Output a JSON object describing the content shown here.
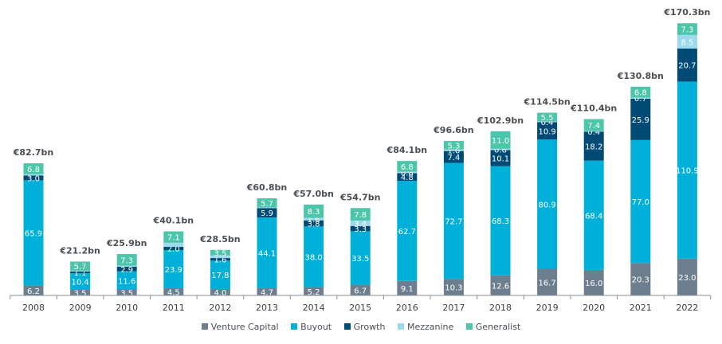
{
  "chart_data": {
    "type": "bar",
    "stacked": true,
    "title": "",
    "xlabel": "",
    "ylabel": "",
    "ylim": [
      0,
      175
    ],
    "grid": false,
    "legend_position": "bottom",
    "categories": [
      "2008",
      "2009",
      "2010",
      "2011",
      "2012",
      "2013",
      "2014",
      "2015",
      "2016",
      "2017",
      "2018",
      "2019",
      "2020",
      "2021",
      "2022"
    ],
    "totals": [
      "€82.7bn",
      "€21.2bn",
      "€25.9bn",
      "€40.1bn",
      "€28.5bn",
      "€60.8bn",
      "€57.0bn",
      "€54.7bn",
      "€84.1bn",
      "€96.6bn",
      "€102.9bn",
      "€114.5bn",
      "€110.4bn",
      "€130.8bn",
      "€170.3bn"
    ],
    "series": [
      {
        "name": "Venture Capital",
        "color": "#6d7f8e",
        "values": [
          6.2,
          3.5,
          3.5,
          4.5,
          4.0,
          4.7,
          5.2,
          6.7,
          9.1,
          10.3,
          12.6,
          16.7,
          16.0,
          20.3,
          23.0
        ],
        "labels": [
          "6.2",
          "3.5",
          "3.5",
          "4.5",
          "4.0",
          "4.7",
          "5.2",
          "6.7",
          "9.1",
          "10.3",
          "12.6",
          "16.7",
          "16.0",
          "20.3",
          "23.0"
        ]
      },
      {
        "name": "Buyout",
        "color": "#00b0d8",
        "values": [
          65.9,
          10.4,
          11.6,
          23.9,
          17.8,
          44.1,
          38.0,
          33.5,
          62.7,
          72.7,
          68.3,
          80.9,
          68.4,
          77.0,
          110.9
        ],
        "labels": [
          "65.9",
          "10.4",
          "11.6",
          "23.9",
          "17.8",
          "44.1",
          "38.0",
          "33.5",
          "62.7",
          "72.7",
          "68.3",
          "80.9",
          "68.4",
          "77.0",
          "110.9"
        ]
      },
      {
        "name": "Growth",
        "color": "#004a76",
        "values": [
          3.0,
          1.1,
          2.9,
          2.0,
          1.6,
          5.9,
          3.8,
          3.3,
          4.8,
          7.4,
          10.1,
          10.9,
          18.2,
          25.9,
          20.7
        ],
        "labels": [
          "3.0",
          "1.1",
          "2.9",
          "2.0",
          "1.6",
          "5.9",
          "3.8",
          "3.3",
          "4.8",
          "7.4",
          "10.1",
          "10.9",
          "18.2",
          "25.9",
          "20.7"
        ]
      },
      {
        "name": "Mezzanine",
        "color": "#9bd9ee",
        "values": [
          0.8,
          0.5,
          0.6,
          2.6,
          1.6,
          0.4,
          1.6,
          3.4,
          0.8,
          1.0,
          0.8,
          0.4,
          0.4,
          0.7,
          8.5
        ],
        "labels": [
          null,
          null,
          null,
          null,
          null,
          null,
          "1.6",
          "3.4",
          "0.8",
          "1.0",
          "0.8",
          "0.4",
          "0.4",
          "0.7",
          "8.5"
        ]
      },
      {
        "name": "Generalist",
        "color": "#4cc6aa",
        "values": [
          6.8,
          5.7,
          7.3,
          7.1,
          3.5,
          5.7,
          8.3,
          7.8,
          6.8,
          5.3,
          11.0,
          5.5,
          7.4,
          6.8,
          7.3
        ],
        "labels": [
          "6.8",
          "5.7",
          "7.3",
          "7.1",
          "3.5",
          "5.7",
          "8.3",
          "7.8",
          "6.8",
          "5.3",
          "11.0",
          "5.5",
          "7.4",
          "6.8",
          "7.3"
        ]
      }
    ]
  },
  "legend": [
    {
      "label": "Venture Capital",
      "color": "#6d7f8e"
    },
    {
      "label": "Buyout",
      "color": "#00b0d8"
    },
    {
      "label": "Growth",
      "color": "#004a76"
    },
    {
      "label": "Mezzanine",
      "color": "#9bd9ee"
    },
    {
      "label": "Generalist",
      "color": "#4cc6aa"
    }
  ]
}
